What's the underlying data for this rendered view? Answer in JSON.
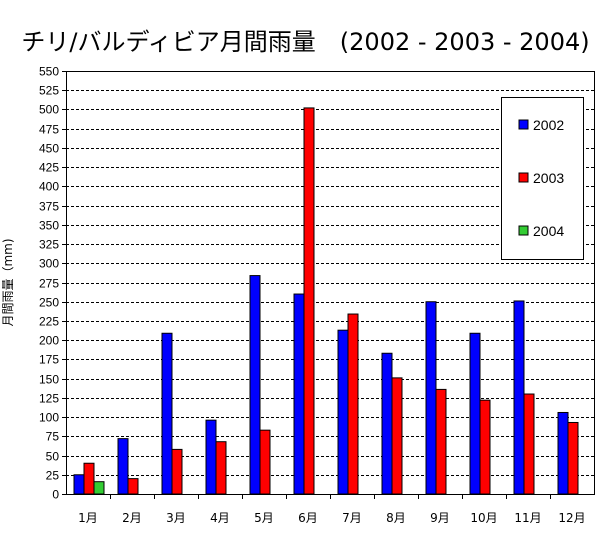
{
  "chart_data": {
    "type": "bar",
    "title": "チリ/バルディビア月間雨量　(2002 - 2003 - 2004)",
    "xlabel": "",
    "ylabel": "月間雨量（mm)",
    "ylim": [
      0,
      550
    ],
    "ytick_step": 25,
    "grid": true,
    "legend_position": "top-right",
    "categories": [
      "1月",
      "2月",
      "3月",
      "4月",
      "5月",
      "6月",
      "7月",
      "8月",
      "9月",
      "10月",
      "11月",
      "12月"
    ],
    "series": [
      {
        "name": "2002",
        "color": "#0000FF",
        "values": [
          25,
          72,
          209,
          96,
          284,
          260,
          213,
          183,
          250,
          209,
          251,
          106
        ]
      },
      {
        "name": "2003",
        "color": "#FF0000",
        "values": [
          40,
          20,
          58,
          68,
          83,
          502,
          234,
          151,
          136,
          122,
          130,
          93
        ]
      },
      {
        "name": "2004",
        "color": "#33CC33",
        "values": [
          16,
          null,
          null,
          null,
          null,
          null,
          null,
          null,
          null,
          null,
          null,
          null
        ]
      }
    ]
  }
}
